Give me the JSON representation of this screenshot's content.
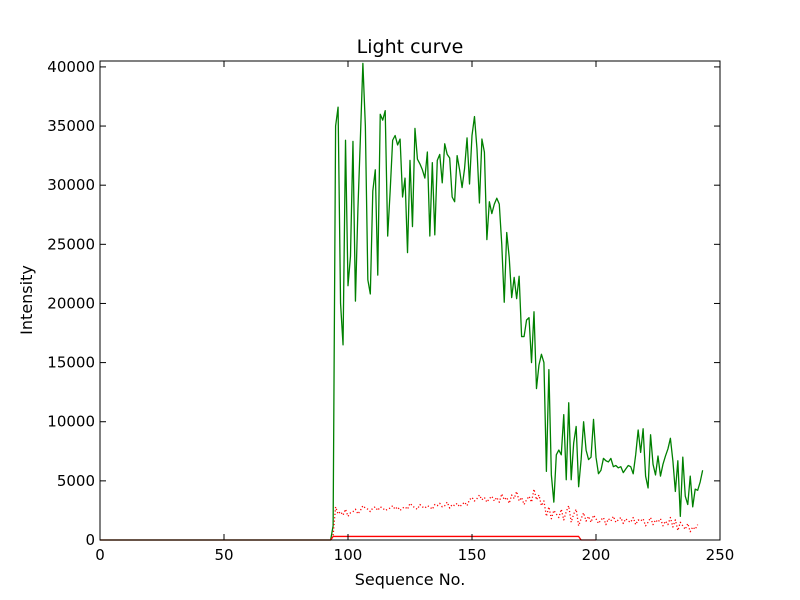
{
  "chart_data": {
    "type": "line",
    "title": "Light curve",
    "xlabel": "Sequence No.",
    "ylabel": "Intensity",
    "xlim": [
      0,
      250
    ],
    "ylim": [
      0,
      40500
    ],
    "grid": false,
    "legend": "none",
    "xticks": [
      0,
      50,
      100,
      150,
      200,
      250
    ],
    "yticks": [
      0,
      5000,
      10000,
      15000,
      20000,
      25000,
      30000,
      35000,
      40000
    ],
    "xtick_labels": [
      "0",
      "50",
      "100",
      "150",
      "200",
      "250"
    ],
    "ytick_labels": [
      "0",
      "5000",
      "10000",
      "15000",
      "20000",
      "25000",
      "30000",
      "35000",
      "40000"
    ],
    "series": [
      {
        "color": "#008000",
        "style": "solid",
        "points": [
          [
            0,
            0
          ],
          [
            93,
            0
          ],
          [
            94,
            1200
          ],
          [
            95,
            35000
          ],
          [
            96,
            36600
          ],
          [
            97,
            20000
          ],
          [
            98,
            16500
          ],
          [
            99,
            33800
          ],
          [
            100,
            21500
          ],
          [
            101,
            24000
          ],
          [
            102,
            33700
          ],
          [
            103,
            20200
          ],
          [
            104,
            28000
          ],
          [
            105,
            34000
          ],
          [
            106,
            40300
          ],
          [
            107,
            35000
          ],
          [
            108,
            22000
          ],
          [
            109,
            20800
          ],
          [
            110,
            29500
          ],
          [
            111,
            31300
          ],
          [
            112,
            22400
          ],
          [
            113,
            36000
          ],
          [
            114,
            35500
          ],
          [
            115,
            36300
          ],
          [
            116,
            25700
          ],
          [
            117,
            29500
          ],
          [
            118,
            33800
          ],
          [
            119,
            34200
          ],
          [
            120,
            33400
          ],
          [
            121,
            33900
          ],
          [
            122,
            29000
          ],
          [
            123,
            30600
          ],
          [
            124,
            24300
          ],
          [
            125,
            32100
          ],
          [
            126,
            26500
          ],
          [
            127,
            34800
          ],
          [
            128,
            32200
          ],
          [
            129,
            31800
          ],
          [
            130,
            31300
          ],
          [
            131,
            30600
          ],
          [
            132,
            32800
          ],
          [
            133,
            25700
          ],
          [
            134,
            31900
          ],
          [
            135,
            25800
          ],
          [
            136,
            32100
          ],
          [
            137,
            32600
          ],
          [
            138,
            30200
          ],
          [
            139,
            33500
          ],
          [
            140,
            32600
          ],
          [
            141,
            32300
          ],
          [
            142,
            29000
          ],
          [
            143,
            28600
          ],
          [
            144,
            32500
          ],
          [
            145,
            31300
          ],
          [
            146,
            29800
          ],
          [
            147,
            31400
          ],
          [
            148,
            34000
          ],
          [
            149,
            30100
          ],
          [
            150,
            34200
          ],
          [
            151,
            35800
          ],
          [
            152,
            33100
          ],
          [
            153,
            28500
          ],
          [
            154,
            33900
          ],
          [
            155,
            32800
          ],
          [
            156,
            25400
          ],
          [
            157,
            28600
          ],
          [
            158,
            27600
          ],
          [
            159,
            28400
          ],
          [
            160,
            28900
          ],
          [
            161,
            28400
          ],
          [
            162,
            25000
          ],
          [
            163,
            20100
          ],
          [
            164,
            26000
          ],
          [
            165,
            23900
          ],
          [
            166,
            20500
          ],
          [
            167,
            22200
          ],
          [
            168,
            20400
          ],
          [
            169,
            22300
          ],
          [
            170,
            17200
          ],
          [
            171,
            17200
          ],
          [
            172,
            18600
          ],
          [
            173,
            18800
          ],
          [
            174,
            15000
          ],
          [
            175,
            19300
          ],
          [
            176,
            12800
          ],
          [
            177,
            14800
          ],
          [
            178,
            15700
          ],
          [
            179,
            15000
          ],
          [
            180,
            5800
          ],
          [
            181,
            14400
          ],
          [
            182,
            5500
          ],
          [
            183,
            3200
          ],
          [
            184,
            7200
          ],
          [
            185,
            7600
          ],
          [
            186,
            7200
          ],
          [
            187,
            10600
          ],
          [
            188,
            5100
          ],
          [
            189,
            11600
          ],
          [
            190,
            5100
          ],
          [
            191,
            8200
          ],
          [
            192,
            9600
          ],
          [
            193,
            4500
          ],
          [
            194,
            6800
          ],
          [
            195,
            10000
          ],
          [
            196,
            7600
          ],
          [
            197,
            6800
          ],
          [
            198,
            7000
          ],
          [
            199,
            10200
          ],
          [
            200,
            7000
          ],
          [
            201,
            5600
          ],
          [
            202,
            5900
          ],
          [
            203,
            6900
          ],
          [
            204,
            6700
          ],
          [
            205,
            6600
          ],
          [
            206,
            6900
          ],
          [
            207,
            6200
          ],
          [
            208,
            6300
          ],
          [
            209,
            6100
          ],
          [
            210,
            6200
          ],
          [
            211,
            5700
          ],
          [
            212,
            6000
          ],
          [
            213,
            6300
          ],
          [
            214,
            6200
          ],
          [
            215,
            5600
          ],
          [
            216,
            7200
          ],
          [
            217,
            9300
          ],
          [
            218,
            7400
          ],
          [
            219,
            9400
          ],
          [
            220,
            5400
          ],
          [
            221,
            4400
          ],
          [
            222,
            8900
          ],
          [
            223,
            6400
          ],
          [
            224,
            5500
          ],
          [
            225,
            7100
          ],
          [
            226,
            5400
          ],
          [
            227,
            6400
          ],
          [
            228,
            7100
          ],
          [
            229,
            7700
          ],
          [
            230,
            8600
          ],
          [
            231,
            6700
          ],
          [
            232,
            4100
          ],
          [
            233,
            6700
          ],
          [
            234,
            2000
          ],
          [
            235,
            7000
          ],
          [
            236,
            3700
          ],
          [
            237,
            3000
          ],
          [
            238,
            5400
          ],
          [
            239,
            2800
          ],
          [
            240,
            4300
          ],
          [
            241,
            4200
          ],
          [
            242,
            4900
          ],
          [
            243,
            5900
          ]
        ]
      },
      {
        "color": "#ff0000",
        "style": "solid",
        "points": [
          [
            0,
            0
          ],
          [
            93,
            0
          ],
          [
            94,
            300
          ],
          [
            193,
            300
          ],
          [
            194,
            0
          ],
          [
            200,
            0
          ]
        ]
      },
      {
        "color": "#ff0000",
        "style": "dotted",
        "points": [
          [
            94,
            400
          ],
          [
            95,
            2800
          ],
          [
            96,
            2200
          ],
          [
            97,
            2400
          ],
          [
            98,
            2100
          ],
          [
            99,
            2600
          ],
          [
            100,
            2000
          ],
          [
            101,
            2300
          ],
          [
            102,
            2400
          ],
          [
            103,
            2600
          ],
          [
            104,
            2200
          ],
          [
            105,
            2500
          ],
          [
            106,
            2900
          ],
          [
            107,
            2700
          ],
          [
            108,
            2600
          ],
          [
            109,
            2400
          ],
          [
            110,
            2700
          ],
          [
            111,
            2800
          ],
          [
            112,
            2500
          ],
          [
            113,
            2800
          ],
          [
            114,
            2700
          ],
          [
            115,
            2500
          ],
          [
            116,
            2600
          ],
          [
            117,
            2700
          ],
          [
            118,
            2900
          ],
          [
            119,
            2600
          ],
          [
            120,
            2800
          ],
          [
            121,
            2500
          ],
          [
            122,
            2700
          ],
          [
            123,
            2800
          ],
          [
            124,
            2600
          ],
          [
            125,
            3100
          ],
          [
            126,
            2900
          ],
          [
            127,
            2700
          ],
          [
            128,
            2600
          ],
          [
            129,
            3000
          ],
          [
            130,
            2800
          ],
          [
            131,
            2700
          ],
          [
            132,
            2900
          ],
          [
            133,
            2800
          ],
          [
            134,
            2600
          ],
          [
            135,
            3000
          ],
          [
            136,
            2900
          ],
          [
            137,
            3100
          ],
          [
            138,
            2800
          ],
          [
            139,
            2900
          ],
          [
            140,
            3200
          ],
          [
            141,
            2700
          ],
          [
            142,
            3000
          ],
          [
            143,
            2900
          ],
          [
            144,
            3100
          ],
          [
            145,
            2800
          ],
          [
            146,
            3000
          ],
          [
            147,
            3200
          ],
          [
            148,
            2900
          ],
          [
            149,
            3400
          ],
          [
            150,
            3600
          ],
          [
            151,
            3300
          ],
          [
            152,
            3500
          ],
          [
            153,
            3800
          ],
          [
            154,
            3400
          ],
          [
            155,
            3600
          ],
          [
            156,
            3200
          ],
          [
            157,
            3500
          ],
          [
            158,
            3700
          ],
          [
            159,
            3300
          ],
          [
            160,
            3600
          ],
          [
            161,
            3200
          ],
          [
            162,
            3900
          ],
          [
            163,
            3400
          ],
          [
            164,
            3600
          ],
          [
            165,
            3100
          ],
          [
            166,
            3800
          ],
          [
            167,
            3500
          ],
          [
            168,
            4100
          ],
          [
            169,
            3300
          ],
          [
            170,
            3600
          ],
          [
            171,
            3000
          ],
          [
            172,
            3400
          ],
          [
            173,
            3700
          ],
          [
            174,
            3200
          ],
          [
            175,
            4300
          ],
          [
            176,
            3400
          ],
          [
            177,
            3800
          ],
          [
            178,
            2900
          ],
          [
            179,
            3300
          ],
          [
            180,
            2000
          ],
          [
            181,
            2800
          ],
          [
            182,
            1800
          ],
          [
            183,
            2500
          ],
          [
            184,
            2200
          ],
          [
            185,
            1900
          ],
          [
            186,
            2600
          ],
          [
            187,
            1700
          ],
          [
            188,
            2400
          ],
          [
            189,
            2900
          ],
          [
            190,
            1500
          ],
          [
            191,
            2200
          ],
          [
            192,
            2600
          ],
          [
            193,
            1200
          ],
          [
            194,
            1800
          ],
          [
            195,
            2300
          ],
          [
            196,
            1600
          ],
          [
            197,
            2000
          ],
          [
            198,
            1500
          ],
          [
            199,
            2100
          ],
          [
            200,
            1800
          ],
          [
            201,
            1400
          ],
          [
            202,
            1700
          ],
          [
            203,
            1900
          ],
          [
            204,
            1300
          ],
          [
            205,
            1800
          ],
          [
            206,
            1600
          ],
          [
            207,
            2000
          ],
          [
            208,
            1500
          ],
          [
            209,
            1700
          ],
          [
            210,
            1900
          ],
          [
            211,
            1400
          ],
          [
            212,
            1800
          ],
          [
            213,
            1600
          ],
          [
            214,
            1500
          ],
          [
            215,
            1900
          ],
          [
            216,
            1300
          ],
          [
            217,
            1700
          ],
          [
            218,
            1600
          ],
          [
            219,
            1800
          ],
          [
            220,
            1200
          ],
          [
            221,
            1500
          ],
          [
            222,
            1900
          ],
          [
            223,
            1300
          ],
          [
            224,
            1700
          ],
          [
            225,
            1500
          ],
          [
            226,
            1800
          ],
          [
            227,
            1200
          ],
          [
            228,
            1600
          ],
          [
            229,
            1300
          ],
          [
            230,
            1900
          ],
          [
            231,
            1100
          ],
          [
            232,
            1700
          ],
          [
            233,
            800
          ],
          [
            234,
            1500
          ],
          [
            235,
            1200
          ],
          [
            236,
            900
          ],
          [
            237,
            1400
          ],
          [
            238,
            700
          ],
          [
            239,
            1100
          ],
          [
            240,
            900
          ],
          [
            241,
            1300
          ]
        ]
      }
    ]
  }
}
